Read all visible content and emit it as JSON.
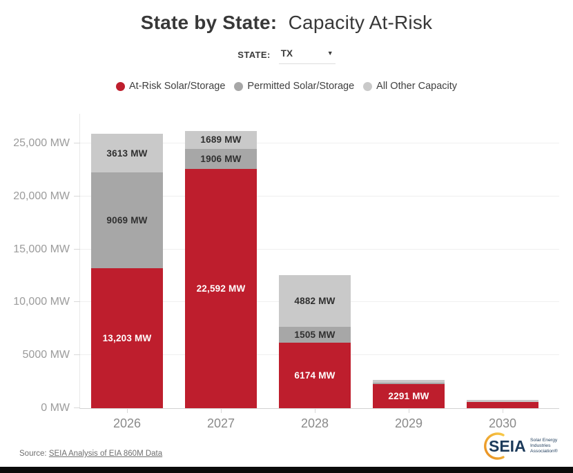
{
  "header": {
    "title_bold": "State by State:",
    "title_regular": "Capacity At-Risk"
  },
  "state_selector": {
    "label": "STATE:",
    "value": "TX",
    "caret": "▼"
  },
  "chart_data": {
    "type": "bar",
    "stacked": true,
    "title": "State by State: Capacity At-Risk",
    "xlabel": "",
    "ylabel": "",
    "grid": "horizontal",
    "legend_position": "top-center",
    "categories": [
      "2026",
      "2027",
      "2028",
      "2029",
      "2030"
    ],
    "series": [
      {
        "name": "At-Risk Solar/Storage",
        "color": "#be1e2d",
        "values": [
          13203,
          22592,
          6174,
          2291,
          560
        ],
        "labels": [
          "13,203 MW",
          "22,592 MW",
          "6174 MW",
          "2291 MW",
          ""
        ]
      },
      {
        "name": "Permitted Solar/Storage",
        "color": "#a7a7a7",
        "values": [
          9069,
          1906,
          1505,
          120,
          0
        ],
        "labels": [
          "9069 MW",
          "1906 MW",
          "1505 MW",
          "",
          ""
        ]
      },
      {
        "name": "All Other Capacity",
        "color": "#c9c9c9",
        "values": [
          3613,
          1689,
          4882,
          260,
          190
        ],
        "labels": [
          "3613 MW",
          "1689 MW",
          "4882 MW",
          "",
          ""
        ]
      }
    ],
    "label_colors": {
      "on_red": "#ffffff",
      "on_gray": "#2f2f2f"
    },
    "y_max": 27800,
    "y_ticks": [
      {
        "value": 0,
        "label": "0 MW"
      },
      {
        "value": 5000,
        "label": "5000 MW"
      },
      {
        "value": 10000,
        "label": "10,000 MW"
      },
      {
        "value": 15000,
        "label": "15,000 MW"
      },
      {
        "value": 20000,
        "label": "20,000 MW"
      },
      {
        "value": 25000,
        "label": "25,000 MW"
      }
    ]
  },
  "footer": {
    "source_prefix": "Source:",
    "source_link": "SEIA Analysis of EIA 860M Data"
  },
  "logo": {
    "text": "SEIA",
    "tagline_lines": [
      "Solar Energy",
      "Industries",
      "Association®"
    ],
    "navy": "#1c3a5a",
    "gold_start": "#e88c1f",
    "gold_end": "#f7c948"
  }
}
